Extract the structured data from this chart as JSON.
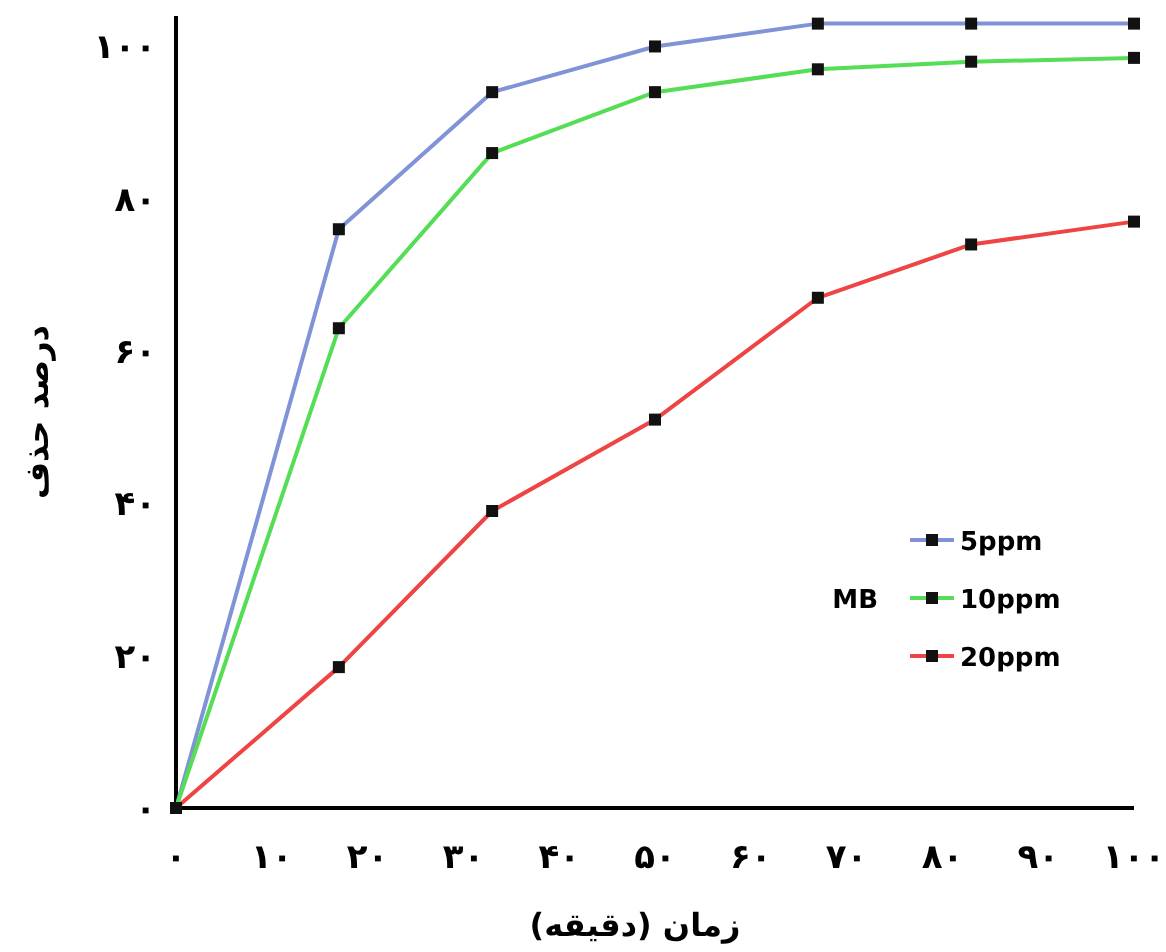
{
  "chart_data": {
    "type": "line",
    "xlabel": "زمان (دقیقه)",
    "ylabel": "درصد حذف",
    "legend_title": "MB",
    "legend": "right",
    "marker": "square",
    "grid": false,
    "x": [
      0,
      17,
      33,
      50,
      67,
      83,
      100
    ],
    "xlim": [
      0,
      100
    ],
    "ylim": [
      0,
      104
    ],
    "xticks": [
      {
        "value": 0,
        "label": "۰"
      },
      {
        "value": 10,
        "label": "۱۰"
      },
      {
        "value": 20,
        "label": "۲۰"
      },
      {
        "value": 30,
        "label": "۳۰"
      },
      {
        "value": 40,
        "label": "۴۰"
      },
      {
        "value": 50,
        "label": "۵۰"
      },
      {
        "value": 60,
        "label": "۶۰"
      },
      {
        "value": 70,
        "label": "۷۰"
      },
      {
        "value": 80,
        "label": "۸۰"
      },
      {
        "value": 90,
        "label": "۹۰"
      },
      {
        "value": 100,
        "label": "۱۰۰"
      }
    ],
    "yticks": [
      {
        "value": 0,
        "label": "۰"
      },
      {
        "value": 20,
        "label": "۲۰"
      },
      {
        "value": 40,
        "label": "۴۰"
      },
      {
        "value": 60,
        "label": "۶۰"
      },
      {
        "value": 80,
        "label": "۸۰"
      },
      {
        "value": 100,
        "label": "۱۰۰"
      }
    ],
    "series": [
      {
        "name": "5ppm",
        "color": "#7f93d6",
        "values": [
          0,
          76,
          94,
          100,
          103,
          103,
          103
        ]
      },
      {
        "name": "10ppm",
        "color": "#55dd55",
        "values": [
          0,
          63,
          86,
          94,
          97,
          98,
          98.5
        ]
      },
      {
        "name": "20ppm",
        "color": "#ee4444",
        "values": [
          0,
          18.5,
          39,
          51,
          67,
          74,
          77
        ]
      }
    ]
  }
}
